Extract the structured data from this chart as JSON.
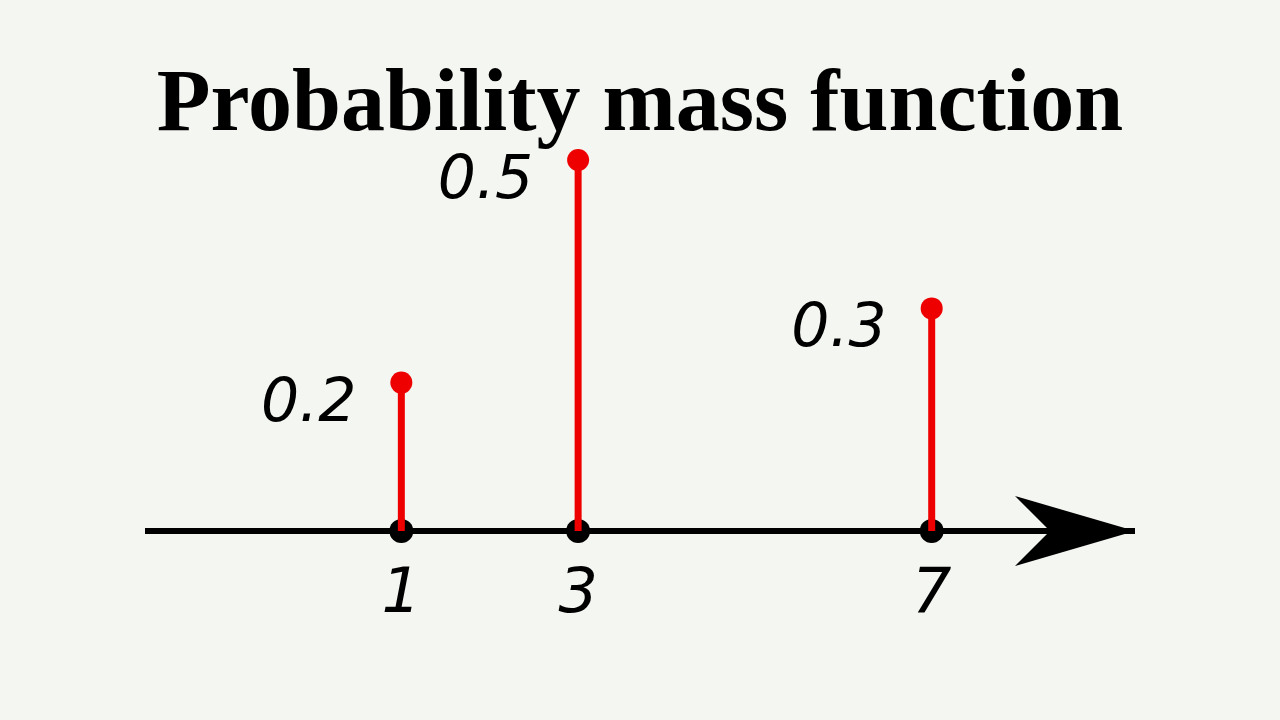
{
  "chart_data": {
    "type": "lollipop",
    "title": "Probability mass function",
    "x": [
      1,
      3,
      7
    ],
    "xlim": [
      -1.9,
      9.3
    ],
    "xticks": [
      1,
      3,
      7
    ],
    "series": [
      {
        "color": "#ee0000",
        "values": [
          0.2,
          0.5,
          0.3
        ]
      }
    ],
    "data_labels": true,
    "marker": "circle"
  }
}
